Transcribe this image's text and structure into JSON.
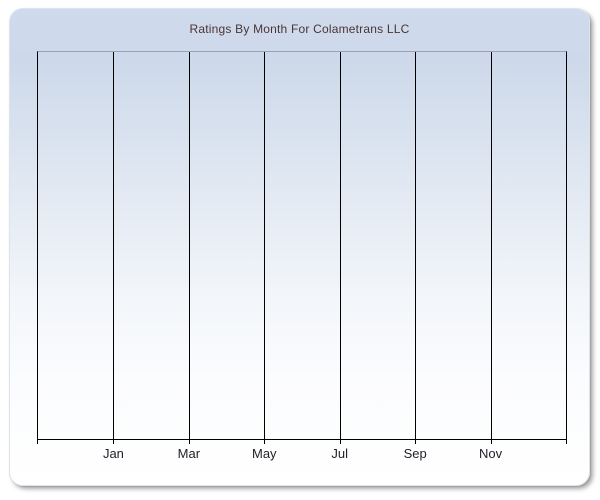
{
  "window": {
    "background": "#ffffff"
  },
  "panel": {
    "background_top": "#cfdbed",
    "background_bottom": "#ffffff",
    "border_color": "#dce3ee",
    "shadow_color": "#6e6e6e"
  },
  "chart_data": {
    "type": "line",
    "title": "Ratings By Month For Colametrans LLC",
    "xlabel": "",
    "ylabel": "",
    "x_tick_labels": [
      "Jan",
      "Mar",
      "May",
      "Jul",
      "Sep",
      "Nov"
    ],
    "x_intervals": 7,
    "series": [],
    "grid": "vertical-gridlines-only",
    "legend": "none",
    "style": {
      "title_color": "#4b3434",
      "gridline_color": "#000000",
      "axis_color": "#000000",
      "plot_top_border_color": "#9ba3ad",
      "tick_label_color": "#21212b"
    }
  }
}
